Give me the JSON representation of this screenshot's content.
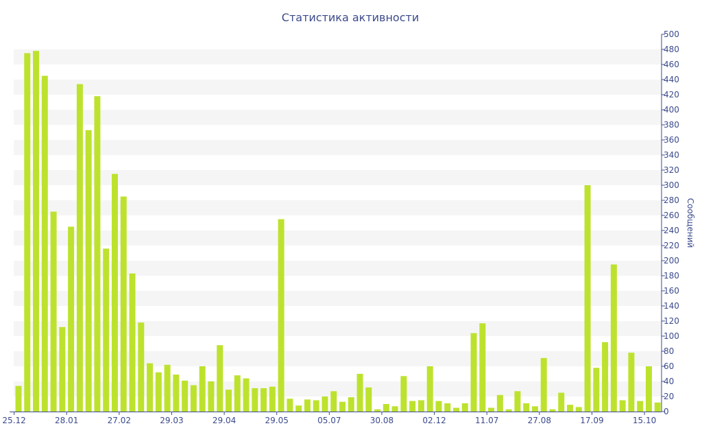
{
  "chart_data": {
    "type": "bar",
    "title": "Статистика активности",
    "ylabel": "Сообщений",
    "xlabel": "",
    "ylim": [
      0,
      500
    ],
    "y_ticks": [
      0,
      20,
      40,
      60,
      80,
      100,
      120,
      140,
      160,
      180,
      200,
      220,
      240,
      260,
      280,
      300,
      320,
      340,
      360,
      380,
      400,
      420,
      440,
      460,
      480,
      500
    ],
    "y_axis_position": "right",
    "grid": "horizontal bands",
    "x_tick_labels": [
      {
        "index": 0,
        "label": "25.12"
      },
      {
        "index": 6,
        "label": "28.01"
      },
      {
        "index": 12,
        "label": "27.02"
      },
      {
        "index": 18,
        "label": "29.03"
      },
      {
        "index": 24,
        "label": "29.04"
      },
      {
        "index": 30,
        "label": "29.05"
      },
      {
        "index": 36,
        "label": "05.07"
      },
      {
        "index": 42,
        "label": "30.08"
      },
      {
        "index": 48,
        "label": "02.12"
      },
      {
        "index": 54,
        "label": "11.07"
      },
      {
        "index": 60,
        "label": "27.08"
      },
      {
        "index": 66,
        "label": "17.09"
      },
      {
        "index": 72,
        "label": "15.10"
      }
    ],
    "values": [
      34,
      475,
      478,
      445,
      265,
      112,
      245,
      434,
      373,
      418,
      216,
      315,
      285,
      183,
      118,
      64,
      52,
      62,
      49,
      41,
      35,
      60,
      40,
      88,
      29,
      48,
      44,
      31,
      31,
      33,
      255,
      17,
      8,
      16,
      15,
      20,
      27,
      13,
      19,
      50,
      32,
      3,
      10,
      7,
      47,
      14,
      15,
      60,
      14,
      11,
      5,
      11,
      104,
      117,
      5,
      22,
      3,
      27,
      11,
      7,
      71,
      3,
      25,
      9,
      6,
      300,
      58,
      92,
      195,
      15,
      78,
      14,
      60,
      12
    ],
    "colors": {
      "bar": "#bde22e",
      "band": "#f5f5f5",
      "axis": "#3b4a8c",
      "text": "#3b4a8c"
    }
  }
}
